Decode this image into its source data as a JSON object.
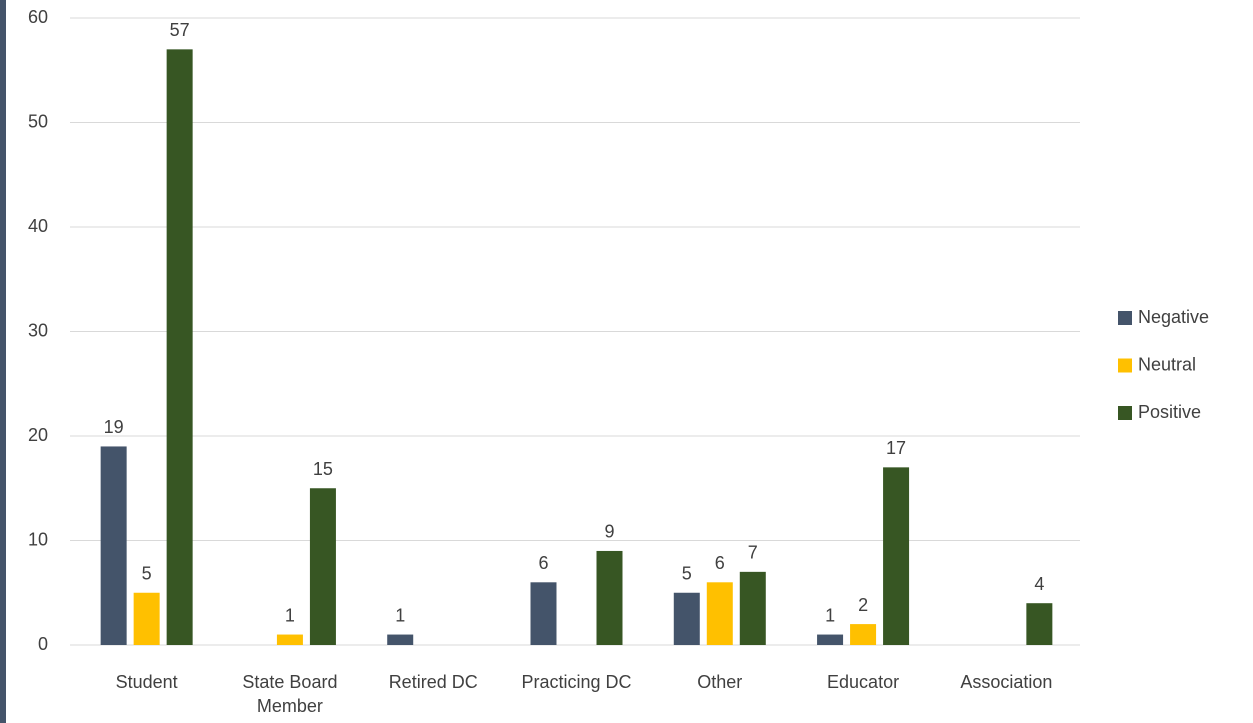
{
  "chart_data": {
    "type": "bar",
    "categories": [
      "Student",
      "State Board Member",
      "Retired DC",
      "Practicing DC",
      "Other",
      "Educator",
      "Association"
    ],
    "series": [
      {
        "name": "Negative",
        "color": "#44546a",
        "values": [
          19,
          null,
          1,
          6,
          5,
          1,
          null
        ]
      },
      {
        "name": "Neutral",
        "color": "#ffc000",
        "values": [
          5,
          1,
          null,
          null,
          6,
          2,
          null
        ]
      },
      {
        "name": "Positive",
        "color": "#375623",
        "values": [
          57,
          15,
          null,
          9,
          7,
          17,
          4
        ]
      }
    ],
    "ylim": [
      0,
      60
    ],
    "yticks": [
      0,
      10,
      20,
      30,
      40,
      50,
      60
    ],
    "grid": true,
    "legend": "right"
  }
}
